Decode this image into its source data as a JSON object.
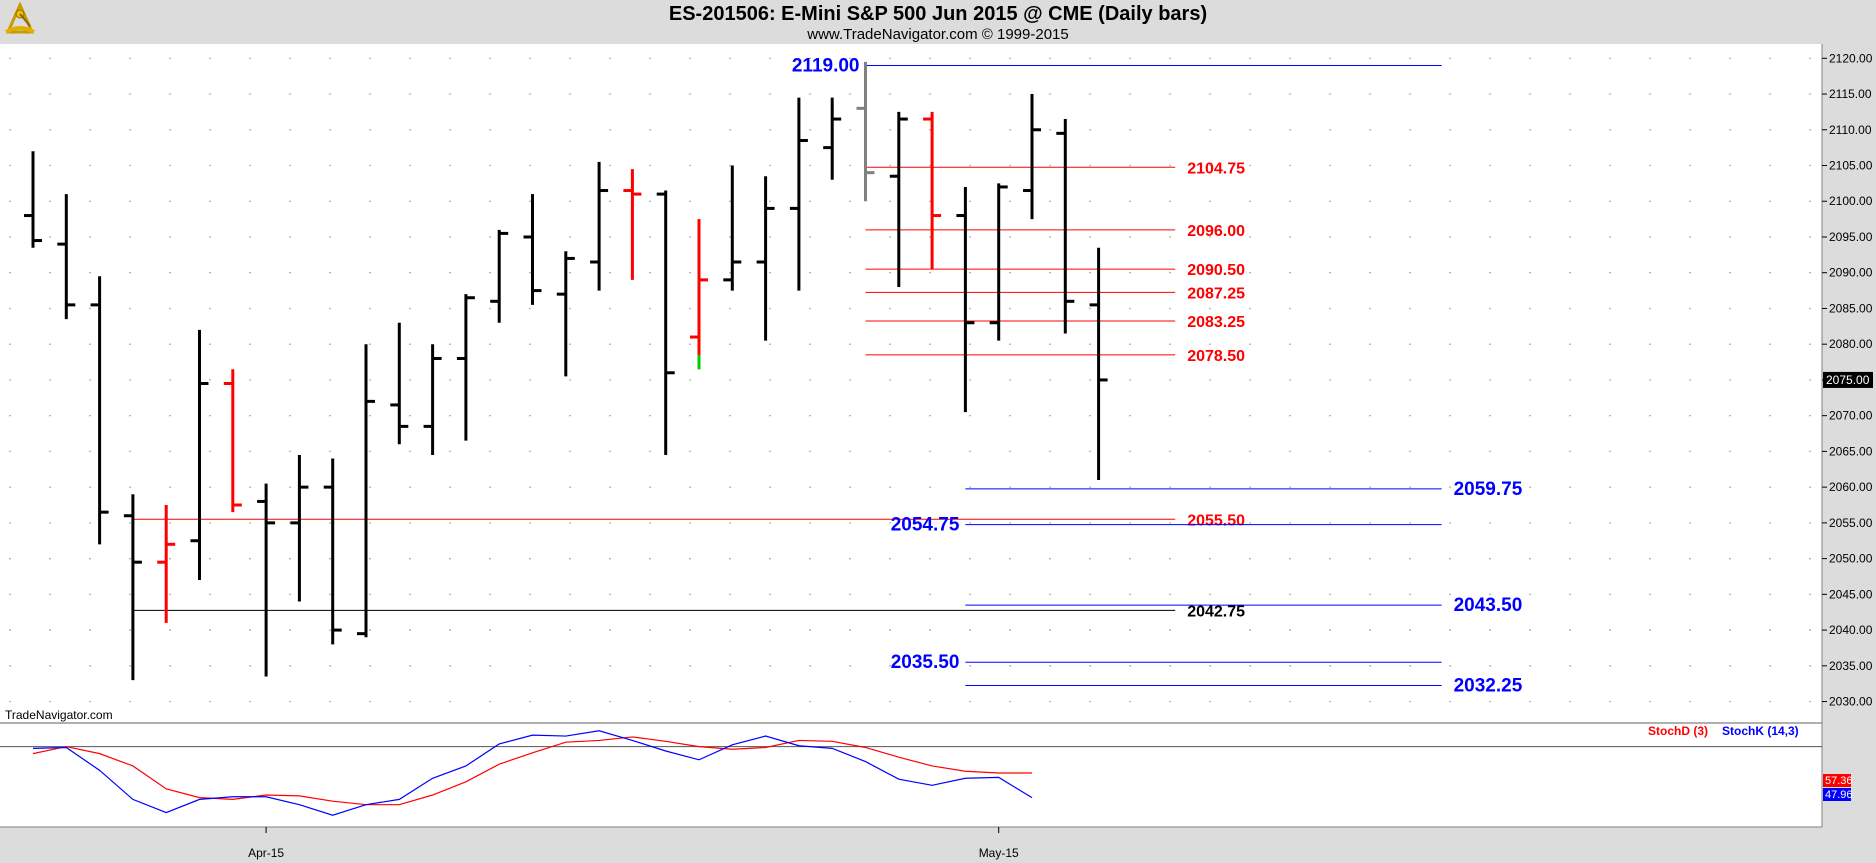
{
  "header": {
    "title": "ES-201506:  E-Mini S&P 500 Jun 2015 @ CME  (Daily bars)",
    "subtitle": "www.TradeNavigator.com © 1999-2015"
  },
  "watermark": "TradeNavigator.com",
  "logo_icon": "sextant-logo-icon",
  "colors": {
    "up": "#000000",
    "down": "#ff0000",
    "neutral": "#808080",
    "blue": "#0000ff",
    "stochD": "#ff0000",
    "stochK": "#0000ff",
    "plot_bg": "#ffffff",
    "frame_bg": "#dcdcdc"
  },
  "chart_data": [
    {
      "type": "ohlc",
      "ylim": [
        2027,
        2122
      ],
      "ytick_labels": [
        "2120.00",
        "2115.00",
        "2110.00",
        "2105.00",
        "2100.00",
        "2095.00",
        "2090.00",
        "2085.00",
        "2080.00",
        "2075.00",
        "2070.00",
        "2065.00",
        "2060.00",
        "2055.00",
        "2050.00",
        "2045.00",
        "2040.00",
        "2035.00",
        "2030.00"
      ],
      "x_labels": [
        {
          "label": "Apr-15",
          "bar": 7
        },
        {
          "label": "May-15",
          "bar": 29
        }
      ],
      "last_price_label": "2075.00",
      "last_price": 2075.0,
      "bars": [
        {
          "o": 2098.0,
          "h": 2107.0,
          "l": 2093.5,
          "c": 2094.5,
          "color": "black"
        },
        {
          "o": 2094.0,
          "h": 2101.0,
          "l": 2083.5,
          "c": 2085.5,
          "color": "black"
        },
        {
          "o": 2085.5,
          "h": 2089.5,
          "l": 2052.0,
          "c": 2056.5,
          "color": "black"
        },
        {
          "o": 2056.0,
          "h": 2059.0,
          "l": 2033.0,
          "c": 2049.5,
          "color": "black"
        },
        {
          "o": 2049.5,
          "h": 2057.5,
          "l": 2041.0,
          "c": 2052.0,
          "color": "red"
        },
        {
          "o": 2052.5,
          "h": 2082.0,
          "l": 2047.0,
          "c": 2074.5,
          "color": "black"
        },
        {
          "o": 2074.5,
          "h": 2076.5,
          "l": 2056.5,
          "c": 2057.5,
          "color": "red"
        },
        {
          "o": 2058.0,
          "h": 2060.5,
          "l": 2033.5,
          "c": 2055.0,
          "color": "black"
        },
        {
          "o": 2055.0,
          "h": 2064.5,
          "l": 2044.0,
          "c": 2060.0,
          "color": "black"
        },
        {
          "o": 2060.0,
          "h": 2064.0,
          "l": 2038.0,
          "c": 2040.0,
          "color": "black"
        },
        {
          "o": 2039.5,
          "h": 2080.0,
          "l": 2039.0,
          "c": 2072.0,
          "color": "black"
        },
        {
          "o": 2071.5,
          "h": 2083.0,
          "l": 2066.0,
          "c": 2068.5,
          "color": "black"
        },
        {
          "o": 2068.5,
          "h": 2080.0,
          "l": 2064.5,
          "c": 2078.0,
          "color": "black"
        },
        {
          "o": 2078.0,
          "h": 2087.0,
          "l": 2066.5,
          "c": 2086.5,
          "color": "black"
        },
        {
          "o": 2086.0,
          "h": 2096.0,
          "l": 2083.0,
          "c": 2095.5,
          "color": "black"
        },
        {
          "o": 2095.0,
          "h": 2101.0,
          "l": 2085.5,
          "c": 2087.5,
          "color": "black"
        },
        {
          "o": 2087.0,
          "h": 2093.0,
          "l": 2075.5,
          "c": 2092.0,
          "color": "black"
        },
        {
          "o": 2091.5,
          "h": 2105.5,
          "l": 2087.5,
          "c": 2101.5,
          "color": "black"
        },
        {
          "o": 2101.5,
          "h": 2104.5,
          "l": 2089.0,
          "c": 2101.0,
          "color": "red"
        },
        {
          "o": 2101.0,
          "h": 2101.5,
          "l": 2064.5,
          "c": 2076.0,
          "color": "black"
        },
        {
          "o": 2081.0,
          "h": 2097.5,
          "l": 2076.5,
          "c": 2089.0,
          "color": "red",
          "low_tick": "green"
        },
        {
          "o": 2089.0,
          "h": 2105.0,
          "l": 2087.5,
          "c": 2091.5,
          "color": "black"
        },
        {
          "o": 2091.5,
          "h": 2103.5,
          "l": 2080.5,
          "c": 2099.0,
          "color": "black"
        },
        {
          "o": 2099.0,
          "h": 2114.5,
          "l": 2087.5,
          "c": 2108.5,
          "color": "black"
        },
        {
          "o": 2107.5,
          "h": 2114.5,
          "l": 2103.0,
          "c": 2111.5,
          "color": "black"
        },
        {
          "o": 2113.0,
          "h": 2119.5,
          "l": 2100.0,
          "c": 2104.0,
          "color": "gray"
        },
        {
          "o": 2103.5,
          "h": 2112.5,
          "l": 2088.0,
          "c": 2111.5,
          "color": "black"
        },
        {
          "o": 2111.5,
          "h": 2112.5,
          "l": 2090.5,
          "c": 2098.0,
          "color": "red"
        },
        {
          "o": 2098.0,
          "h": 2102.0,
          "l": 2070.5,
          "c": 2083.0,
          "color": "black"
        },
        {
          "o": 2083.0,
          "h": 2102.5,
          "l": 2080.5,
          "c": 2102.0,
          "color": "black"
        },
        {
          "o": 2101.5,
          "h": 2115.0,
          "l": 2097.5,
          "c": 2110.0,
          "color": "black"
        },
        {
          "o": 2109.5,
          "h": 2111.5,
          "l": 2081.5,
          "c": 2086.0,
          "color": "black"
        },
        {
          "o": 2085.5,
          "h": 2093.5,
          "l": 2061.0,
          "c": 2075.0,
          "color": "black"
        }
      ],
      "levels": [
        {
          "value": 2119.0,
          "label": "2119.00",
          "color": "blue",
          "from": 25,
          "to": 42,
          "label_side": "left"
        },
        {
          "value": 2104.75,
          "label": "2104.75",
          "color": "red",
          "from": 25,
          "to": 34,
          "label_side": "right"
        },
        {
          "value": 2096.0,
          "label": "2096.00",
          "color": "red",
          "from": 25,
          "to": 34,
          "label_side": "right"
        },
        {
          "value": 2090.5,
          "label": "2090.50",
          "color": "red",
          "from": 25,
          "to": 34,
          "label_side": "right"
        },
        {
          "value": 2087.25,
          "label": "2087.25",
          "color": "red",
          "from": 25,
          "to": 34,
          "label_side": "right"
        },
        {
          "value": 2083.25,
          "label": "2083.25",
          "color": "red",
          "from": 25,
          "to": 34,
          "label_side": "right"
        },
        {
          "value": 2078.5,
          "label": "2078.50",
          "color": "red",
          "from": 25,
          "to": 34,
          "label_side": "right"
        },
        {
          "value": 2059.75,
          "label": "2059.75",
          "color": "blue",
          "from": 28,
          "to": 42,
          "label_side": "right"
        },
        {
          "value": 2055.5,
          "label": "2055.50",
          "color": "red",
          "from": 3,
          "to": 34,
          "label_side": "right"
        },
        {
          "value": 2054.75,
          "label": "2054.75",
          "color": "blue",
          "from": 28,
          "to": 42,
          "label_side": "left"
        },
        {
          "value": 2043.5,
          "label": "2043.50",
          "color": "blue",
          "from": 28,
          "to": 42,
          "label_side": "right"
        },
        {
          "value": 2042.75,
          "label": "2042.75",
          "color": "black",
          "from": 3,
          "to": 34,
          "label_side": "right"
        },
        {
          "value": 2035.5,
          "label": "2035.50",
          "color": "blue",
          "from": 28,
          "to": 42,
          "label_side": "left"
        },
        {
          "value": 2032.25,
          "label": "2032.25",
          "color": "blue",
          "from": 28,
          "to": 42,
          "label_side": "right"
        }
      ]
    },
    {
      "type": "line",
      "ylim": [
        0,
        100
      ],
      "legend": [
        {
          "name": "StochD (3)",
          "color": "red"
        },
        {
          "name": "StochK (14,3)",
          "color": "blue"
        }
      ],
      "reference_line": 80,
      "series": [
        {
          "name": "StochD (3)",
          "values": [
            72,
            80,
            72,
            58,
            32,
            22,
            20,
            25,
            24,
            18,
            14,
            14,
            25,
            40,
            60,
            73,
            85,
            87,
            91,
            86,
            80,
            77,
            79,
            87,
            86,
            79,
            68,
            58,
            52,
            50,
            50
          ]
        },
        {
          "name": "StochK (14,3)",
          "values": [
            78,
            79,
            53,
            20,
            5,
            20,
            23,
            23,
            14,
            2,
            14,
            20,
            44,
            58,
            83,
            93,
            92,
            98,
            87,
            75,
            65,
            82,
            92,
            81,
            78,
            63,
            43,
            36,
            44,
            45,
            22
          ]
        }
      ],
      "series_start_bar": 0,
      "value_labels": [
        {
          "label": "57.36",
          "color": "red",
          "value": 57.36
        },
        {
          "label": "47.96",
          "color": "blue",
          "value": 47.96
        }
      ]
    }
  ]
}
